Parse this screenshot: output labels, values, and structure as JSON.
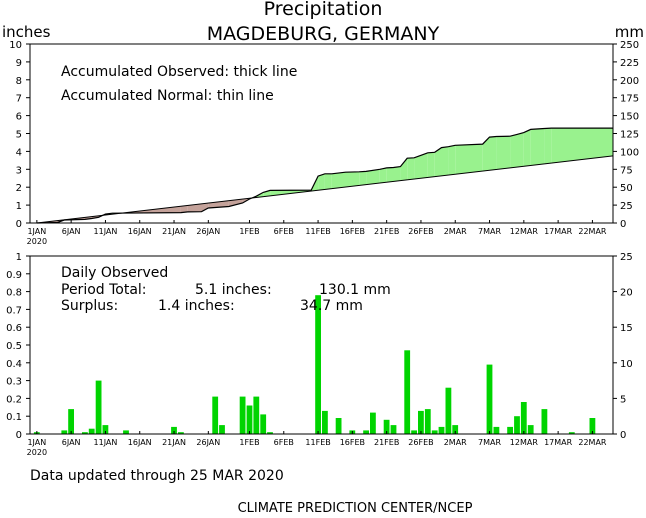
{
  "header": {
    "title": "Precipitation",
    "subtitle": "MAGDEBURG, GERMANY",
    "left_unit": "inches",
    "right_unit": "mm"
  },
  "top_panel": {
    "note1": "Accumulated Observed: thick line",
    "note2": "Accumulated Normal: thin line"
  },
  "bottom_panel": {
    "label": "Daily Observed",
    "period_total_label": "Period Total:",
    "period_total_inches": "5.1 inches:",
    "period_total_mm": "130.1 mm",
    "surplus_label": "Surplus:",
    "surplus_inches": "1.4 inches:",
    "surplus_mm": "34.7 mm"
  },
  "footer": {
    "updated": "Data updated through 25 MAR 2020",
    "credit": "CLIMATE PREDICTION CENTER/NCEP"
  },
  "colors": {
    "surplus_fill": "#99f28e",
    "deficit_fill": "#c4a29a",
    "daily_bar": "#00d400",
    "axis": "#000000"
  },
  "chart_data": [
    {
      "type": "area",
      "panel": "accumulated",
      "x_tick_labels": [
        "1JAN",
        "6JAN",
        "11JAN",
        "16JAN",
        "21JAN",
        "26JAN",
        "1FEB",
        "6FEB",
        "11FEB",
        "16FEB",
        "21FEB",
        "26FEB",
        "2MAR",
        "7MAR",
        "12MAR",
        "17MAR",
        "22MAR"
      ],
      "x_tick_days": [
        1,
        6,
        11,
        16,
        21,
        26,
        32,
        37,
        42,
        47,
        52,
        57,
        62,
        67,
        72,
        77,
        82
      ],
      "x_year_label": "2020",
      "xlim_days": [
        0,
        85
      ],
      "ylim_inches": [
        0,
        10
      ],
      "ylim_mm": [
        0,
        250
      ],
      "y_ticks_inches": [
        0,
        1,
        2,
        3,
        4,
        5,
        6,
        7,
        8,
        9,
        10
      ],
      "y_ticks_mm": [
        0,
        25,
        50,
        75,
        100,
        125,
        150,
        175,
        200,
        225,
        250
      ],
      "normal_start": [
        1,
        0.0
      ],
      "normal_end": [
        85,
        3.75
      ],
      "observed": [
        [
          1,
          0
        ],
        [
          4,
          0.03
        ],
        [
          5,
          0.17
        ],
        [
          8,
          0.2
        ],
        [
          9,
          0.25
        ],
        [
          10,
          0.32
        ],
        [
          11,
          0.5
        ],
        [
          12,
          0.55
        ],
        [
          22,
          0.58
        ],
        [
          23,
          0.62
        ],
        [
          25,
          0.63
        ],
        [
          26,
          0.84
        ],
        [
          29,
          0.92
        ],
        [
          31,
          1.12
        ],
        [
          32,
          1.34
        ],
        [
          33,
          1.5
        ],
        [
          34,
          1.71
        ],
        [
          35,
          1.82
        ],
        [
          41,
          1.84
        ],
        [
          42,
          2.62
        ],
        [
          43,
          2.75
        ],
        [
          44,
          2.75
        ],
        [
          46,
          2.84
        ],
        [
          48,
          2.86
        ],
        [
          49,
          2.88
        ],
        [
          51,
          3.0
        ],
        [
          52,
          3.08
        ],
        [
          53,
          3.1
        ],
        [
          54,
          3.15
        ],
        [
          55,
          3.62
        ],
        [
          56,
          3.64
        ],
        [
          57,
          3.78
        ],
        [
          58,
          3.92
        ],
        [
          59,
          3.95
        ],
        [
          60,
          4.21
        ],
        [
          61,
          4.26
        ],
        [
          62,
          4.34
        ],
        [
          66,
          4.41
        ],
        [
          67,
          4.8
        ],
        [
          68,
          4.83
        ],
        [
          70,
          4.85
        ],
        [
          71,
          4.95
        ],
        [
          72,
          5.05
        ],
        [
          73,
          5.23
        ],
        [
          75,
          5.28
        ],
        [
          76,
          5.3
        ],
        [
          85,
          5.3
        ]
      ]
    },
    {
      "type": "bar",
      "panel": "daily",
      "x_tick_labels": [
        "1JAN",
        "6JAN",
        "11JAN",
        "16JAN",
        "21JAN",
        "26JAN",
        "1FEB",
        "6FEB",
        "11FEB",
        "16FEB",
        "21FEB",
        "26FEB",
        "2MAR",
        "7MAR",
        "12MAR",
        "17MAR",
        "22MAR"
      ],
      "x_tick_days": [
        1,
        6,
        11,
        16,
        21,
        26,
        32,
        37,
        42,
        47,
        52,
        57,
        62,
        67,
        72,
        77,
        82
      ],
      "x_year_label": "2020",
      "xlim_days": [
        0,
        85
      ],
      "ylim_inches": [
        0,
        1
      ],
      "ylim_mm": [
        0,
        25
      ],
      "y_ticks_inches": [
        0,
        0.1,
        0.2,
        0.3,
        0.4,
        0.5,
        0.6,
        0.7,
        0.8,
        0.9,
        1
      ],
      "y_ticks_mm": [
        0,
        5,
        10,
        15,
        20,
        25
      ],
      "days": [
        1,
        5,
        6,
        8,
        9,
        10,
        11,
        14,
        21,
        22,
        27,
        28,
        31,
        32,
        33,
        34,
        35,
        42,
        43,
        45,
        47,
        49,
        50,
        52,
        53,
        55,
        56,
        57,
        58,
        59,
        60,
        61,
        62,
        67,
        68,
        70,
        71,
        72,
        73,
        75,
        79,
        82
      ],
      "values": [
        0.01,
        0.02,
        0.14,
        0.01,
        0.03,
        0.3,
        0.05,
        0.02,
        0.04,
        0.01,
        0.21,
        0.05,
        0.21,
        0.16,
        0.21,
        0.11,
        0.01,
        0.78,
        0.13,
        0.09,
        0.02,
        0.02,
        0.12,
        0.08,
        0.05,
        0.47,
        0.02,
        0.13,
        0.14,
        0.02,
        0.04,
        0.26,
        0.05,
        0.39,
        0.04,
        0.04,
        0.1,
        0.18,
        0.05,
        0.14,
        0.01,
        0.09
      ]
    }
  ]
}
